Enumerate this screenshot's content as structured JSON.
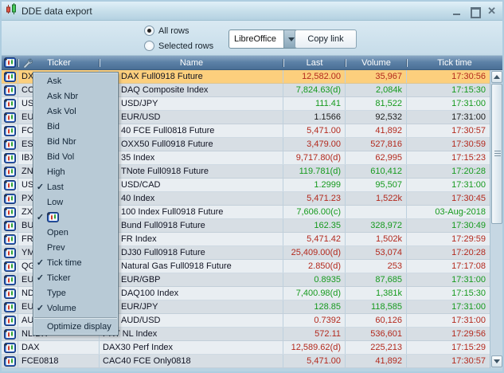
{
  "window": {
    "title": "DDE data export",
    "close_glyph": "✕"
  },
  "toolbar": {
    "all_rows": "All rows",
    "selected_rows": "Selected rows",
    "all_rows_selected": true,
    "export_target": "LibreOffice",
    "copy_link": "Copy link"
  },
  "table": {
    "headers": {
      "ticker": "Ticker",
      "name": "Name",
      "last": "Last",
      "volume": "Volume",
      "tick_time": "Tick time"
    },
    "rows": [
      {
        "ticker": "DX",
        "name": "DAX Full0918 Future",
        "last": "12,582.00",
        "volume": "35,967",
        "tick_time": "17:30:56",
        "color": "red",
        "selected": true,
        "covered": true
      },
      {
        "ticker": "CO",
        "name": "DAQ Composite Index",
        "last": "7,824.63(d)",
        "volume": "2,084k",
        "tick_time": "17:15:30",
        "color": "green",
        "selected": false,
        "covered": true
      },
      {
        "ticker": "US",
        "name": "USD/JPY",
        "last": "111.41",
        "volume": "81,522",
        "tick_time": "17:31:00",
        "color": "green",
        "selected": false,
        "covered": true
      },
      {
        "ticker": "EU",
        "name": "EUR/USD",
        "last": "1.1566",
        "volume": "92,532",
        "tick_time": "17:31:00",
        "color": "black",
        "selected": false,
        "covered": true
      },
      {
        "ticker": "FC",
        "name": "40 FCE Full0818 Future",
        "last": "5,471.00",
        "volume": "41,892",
        "tick_time": "17:30:57",
        "color": "red",
        "selected": false,
        "covered": true
      },
      {
        "ticker": "ES",
        "name": "OXX50 Full0918 Future",
        "last": "3,479.00",
        "volume": "527,816",
        "tick_time": "17:30:59",
        "color": "red",
        "selected": false,
        "covered": true
      },
      {
        "ticker": "IBX",
        "name": "35 Index",
        "last": "9,717.80(d)",
        "volume": "62,995",
        "tick_time": "17:15:23",
        "color": "red",
        "selected": false,
        "covered": true
      },
      {
        "ticker": "ZN",
        "name": "TNote Full0918 Future",
        "last": "119.781(d)",
        "volume": "610,412",
        "tick_time": "17:20:28",
        "color": "green",
        "selected": false,
        "covered": true
      },
      {
        "ticker": "US",
        "name": "USD/CAD",
        "last": "1.2999",
        "volume": "95,507",
        "tick_time": "17:31:00",
        "color": "green",
        "selected": false,
        "covered": true
      },
      {
        "ticker": "PX",
        "name": "40 Index",
        "last": "5,471.23",
        "volume": "1,522k",
        "tick_time": "17:30:45",
        "color": "red",
        "selected": false,
        "covered": true
      },
      {
        "ticker": "ZX",
        "name": "100 Index Full0918 Future",
        "last": "7,606.00(c)",
        "volume": "",
        "tick_time": "03-Aug-2018",
        "color": "green",
        "selected": false,
        "covered": true
      },
      {
        "ticker": "BU",
        "name": "Bund Full0918 Future",
        "last": "162.35",
        "volume": "328,972",
        "tick_time": "17:30:49",
        "color": "green",
        "selected": false,
        "covered": true
      },
      {
        "ticker": "FR",
        "name": "FR Index",
        "last": "5,471.42",
        "volume": "1,502k",
        "tick_time": "17:29:59",
        "color": "red",
        "selected": false,
        "covered": true
      },
      {
        "ticker": "YM",
        "name": "DJ30 Full0918 Future",
        "last": "25,409.00(d)",
        "volume": "53,074",
        "tick_time": "17:20:28",
        "color": "red",
        "selected": false,
        "covered": true
      },
      {
        "ticker": "QG",
        "name": "Natural Gas Full0918 Future",
        "last": "2.850(d)",
        "volume": "253",
        "tick_time": "17:17:08",
        "color": "red",
        "selected": false,
        "covered": true
      },
      {
        "ticker": "EU",
        "name": "EUR/GBP",
        "last": "0.8935",
        "volume": "87,685",
        "tick_time": "17:31:00",
        "color": "green",
        "selected": false,
        "covered": true
      },
      {
        "ticker": "ND",
        "name": "DAQ100 Index",
        "last": "7,400.98(d)",
        "volume": "1,381k",
        "tick_time": "17:15:30",
        "color": "green",
        "selected": false,
        "covered": true
      },
      {
        "ticker": "EU",
        "name": "EUR/JPY",
        "last": "128.85",
        "volume": "118,585",
        "tick_time": "17:31:00",
        "color": "green",
        "selected": false,
        "covered": true
      },
      {
        "ticker": "AU",
        "name": "AUD/USD",
        "last": "0.7392",
        "volume": "60,126",
        "tick_time": "17:31:00",
        "color": "red",
        "selected": false,
        "covered": true
      },
      {
        "ticker": "NLIDX",
        "name": "PRT NL Index",
        "last": "572.11",
        "volume": "536,601",
        "tick_time": "17:29:56",
        "color": "red",
        "selected": false,
        "covered": false
      },
      {
        "ticker": "DAX",
        "name": "DAX30 Perf Index",
        "last": "12,589.62(d)",
        "volume": "225,213",
        "tick_time": "17:15:29",
        "color": "red",
        "selected": false,
        "covered": false
      },
      {
        "ticker": "FCE0818",
        "name": "CAC40 FCE Only0818",
        "last": "5,471.00",
        "volume": "41,892",
        "tick_time": "17:30:57",
        "color": "red",
        "selected": false,
        "covered": false
      }
    ]
  },
  "menu": {
    "check_glyph": "✓",
    "items": [
      {
        "label": "Ask",
        "checked": false
      },
      {
        "label": "Ask Nbr",
        "checked": false
      },
      {
        "label": "Ask Vol",
        "checked": false
      },
      {
        "label": "Bid",
        "checked": false
      },
      {
        "label": "Bid Nbr",
        "checked": false
      },
      {
        "label": "Bid Vol",
        "checked": false
      },
      {
        "label": "High",
        "checked": false
      },
      {
        "label": "Last",
        "checked": true
      },
      {
        "label": "Low",
        "checked": false
      },
      {
        "icon": "chart-icon",
        "checked": true
      },
      {
        "label": "Open",
        "checked": false
      },
      {
        "label": "Prev",
        "checked": false
      },
      {
        "label": "Tick time",
        "checked": true
      },
      {
        "label": "Ticker",
        "checked": true
      },
      {
        "label": "Type",
        "checked": false
      },
      {
        "label": "Volume",
        "checked": true
      }
    ],
    "footer": "Optimize display"
  },
  "colors": {
    "up_green": "#169a1e",
    "down_red": "#b3291d",
    "neutral": "#1c1c1c",
    "selected_row": "#fccf7d",
    "header_blue": "#4a6f96",
    "menu_bg": "#b8cad6"
  }
}
